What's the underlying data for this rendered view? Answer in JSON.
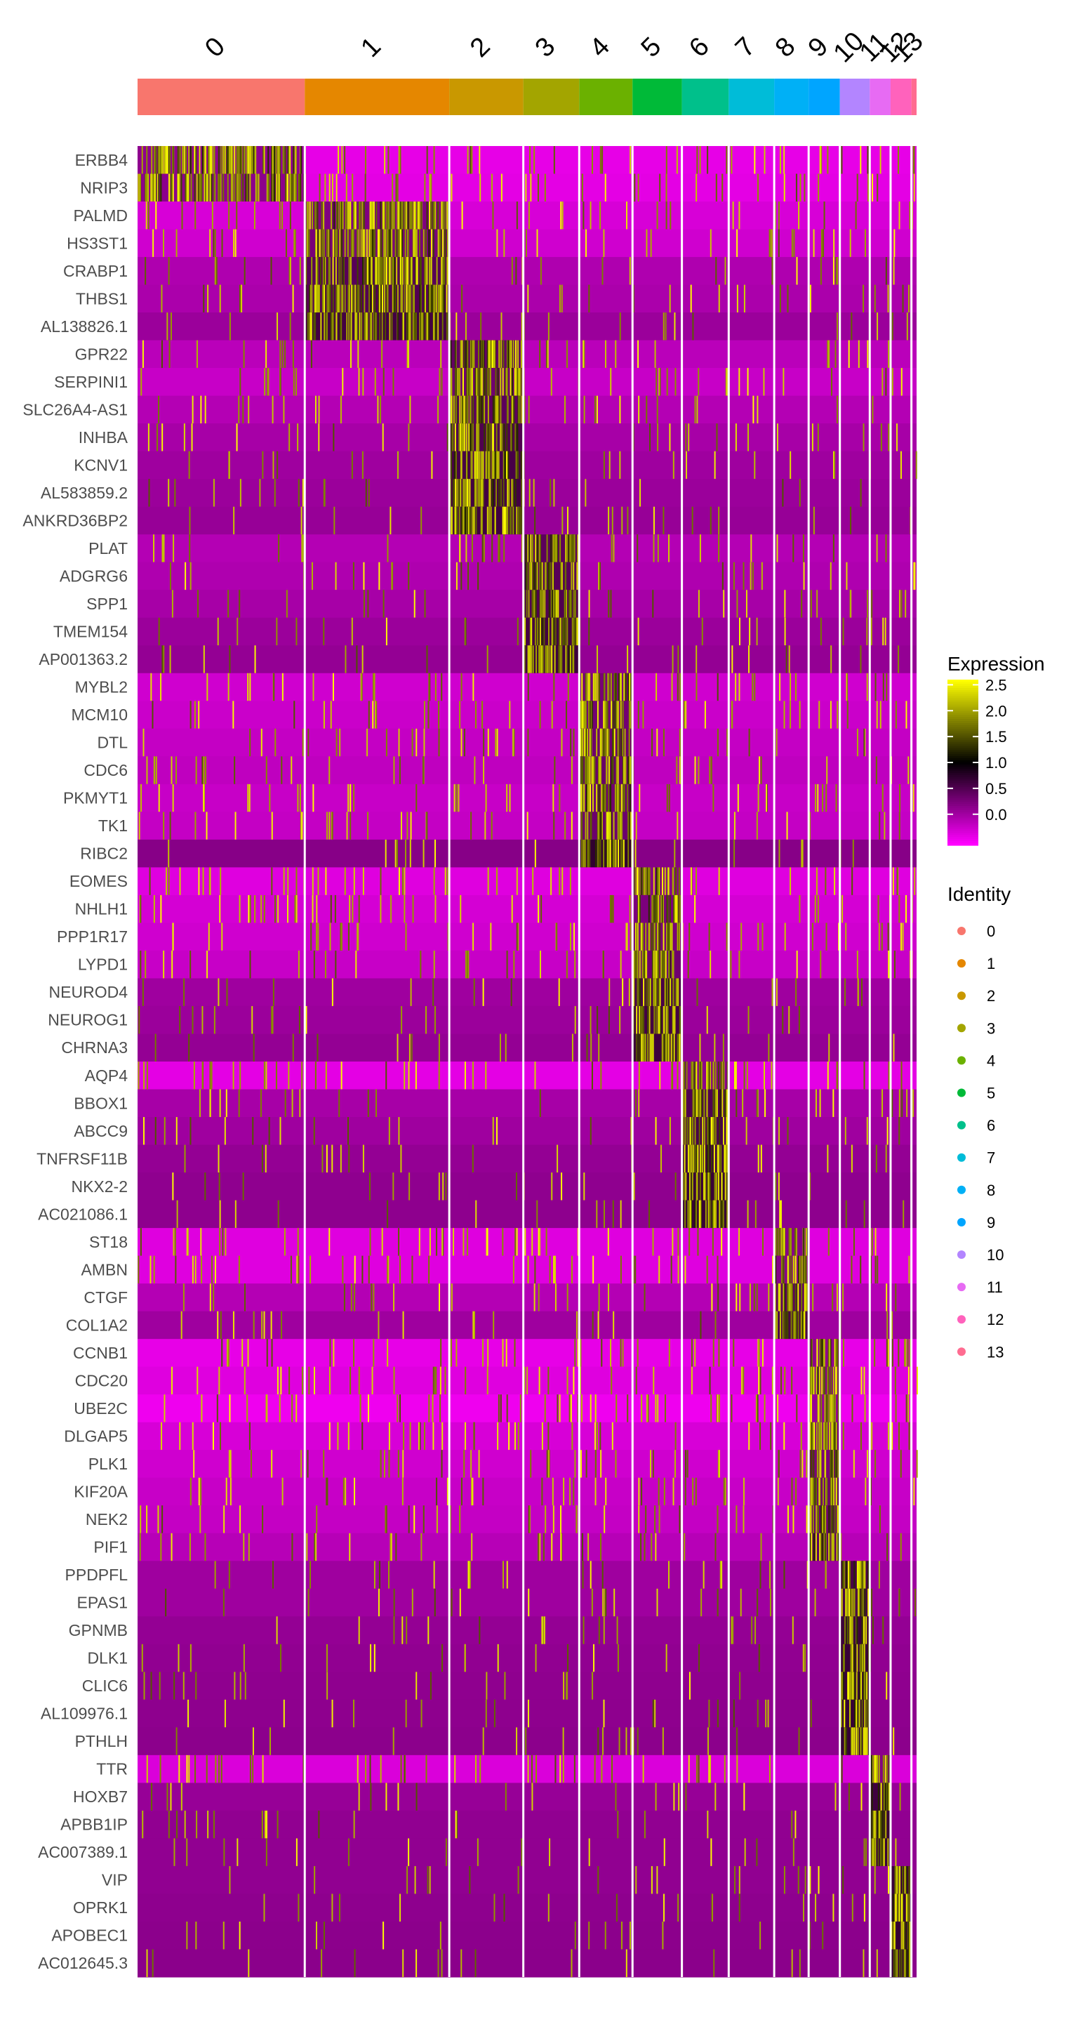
{
  "chart_data": {
    "type": "heatmap",
    "title": "",
    "xlabel": "",
    "ylabel": "",
    "clusters": [
      "0",
      "1",
      "2",
      "3",
      "4",
      "5",
      "6",
      "7",
      "8",
      "9",
      "10",
      "11",
      "12",
      "13"
    ],
    "cluster_cell_fraction": [
      0.2136,
      0.1846,
      0.0946,
      0.0714,
      0.0681,
      0.0631,
      0.0598,
      0.0581,
      0.044,
      0.0399,
      0.0382,
      0.0266,
      0.0266,
      0.0066
    ],
    "cluster_colors": [
      "#F8766D",
      "#E58700",
      "#C99800",
      "#A3A500",
      "#6BB100",
      "#00BA38",
      "#00C08B",
      "#00BCD8",
      "#00B0F6",
      "#00A5FF",
      "#B385FF",
      "#E76BF3",
      "#FF62BC",
      "#FF6C91"
    ],
    "genes": [
      "ERBB4",
      "NRIP3",
      "PALMD",
      "HS3ST1",
      "CRABP1",
      "THBS1",
      "AL138826.1",
      "GPR22",
      "SERPINI1",
      "SLC26A4-AS1",
      "INHBA",
      "KCNV1",
      "AL583859.2",
      "ANKRD36BP2",
      "PLAT",
      "ADGRG6",
      "SPP1",
      "TMEM154",
      "AP001363.2",
      "MYBL2",
      "MCM10",
      "DTL",
      "CDC6",
      "PKMYT1",
      "TK1",
      "RIBC2",
      "EOMES",
      "NHLH1",
      "PPP1R17",
      "LYPD1",
      "NEUROD4",
      "NEUROG1",
      "CHRNA3",
      "AQP4",
      "BBOX1",
      "ABCC9",
      "TNFRSF11B",
      "NKX2-2",
      "AC021086.1",
      "ST18",
      "AMBN",
      "CTGF",
      "COL1A2",
      "CCNB1",
      "CDC20",
      "UBE2C",
      "DLGAP5",
      "PLK1",
      "KIF20A",
      "NEK2",
      "PIF1",
      "PPDPFL",
      "EPAS1",
      "GPNMB",
      "DLK1",
      "CLIC6",
      "AL109976.1",
      "PTHLH",
      "TTR",
      "HOXB7",
      "APBB1IP",
      "AC007389.1",
      "VIP",
      "OPRK1",
      "APOBEC1",
      "AC012645.3"
    ],
    "marker_cluster": [
      0,
      0,
      1,
      1,
      1,
      1,
      1,
      2,
      2,
      2,
      2,
      2,
      2,
      2,
      3,
      3,
      3,
      3,
      3,
      4,
      4,
      4,
      4,
      4,
      4,
      4,
      5,
      5,
      5,
      5,
      5,
      5,
      5,
      6,
      6,
      6,
      6,
      6,
      6,
      8,
      8,
      8,
      8,
      9,
      9,
      9,
      9,
      9,
      9,
      9,
      9,
      10,
      10,
      10,
      10,
      10,
      10,
      10,
      11,
      11,
      11,
      11,
      12,
      12,
      12,
      12
    ],
    "row_baseline": [
      0.1,
      0.12,
      0.2,
      0.25,
      0.45,
      0.48,
      0.58,
      0.38,
      0.3,
      0.42,
      0.5,
      0.55,
      0.58,
      0.6,
      0.42,
      0.45,
      0.5,
      0.58,
      0.62,
      0.25,
      0.28,
      0.32,
      0.35,
      0.3,
      0.32,
      0.7,
      0.15,
      0.22,
      0.25,
      0.3,
      0.55,
      0.58,
      0.62,
      0.12,
      0.5,
      0.55,
      0.62,
      0.65,
      0.66,
      0.15,
      0.15,
      0.42,
      0.55,
      0.1,
      0.15,
      0.05,
      0.2,
      0.25,
      0.3,
      0.32,
      0.4,
      0.55,
      0.55,
      0.62,
      0.64,
      0.65,
      0.66,
      0.67,
      0.18,
      0.6,
      0.64,
      0.64,
      0.64,
      0.66,
      0.67,
      0.68
    ],
    "legend": {
      "expression_title": "Expression",
      "expression_ticks": [
        "2.5",
        "2.0",
        "1.5",
        "1.0",
        "0.5",
        "0.0"
      ],
      "expression_values": [
        2.5,
        2.0,
        1.5,
        1.0,
        0.5,
        0.0
      ],
      "expression_range": [
        -0.6,
        2.6
      ],
      "identity_title": "Identity",
      "identity_labels": [
        "0",
        "1",
        "2",
        "3",
        "4",
        "5",
        "6",
        "7",
        "8",
        "9",
        "10",
        "11",
        "12",
        "13"
      ]
    },
    "colorscale": [
      "#FF00FF",
      "#000000",
      "#FFFF00"
    ],
    "grid": false
  }
}
